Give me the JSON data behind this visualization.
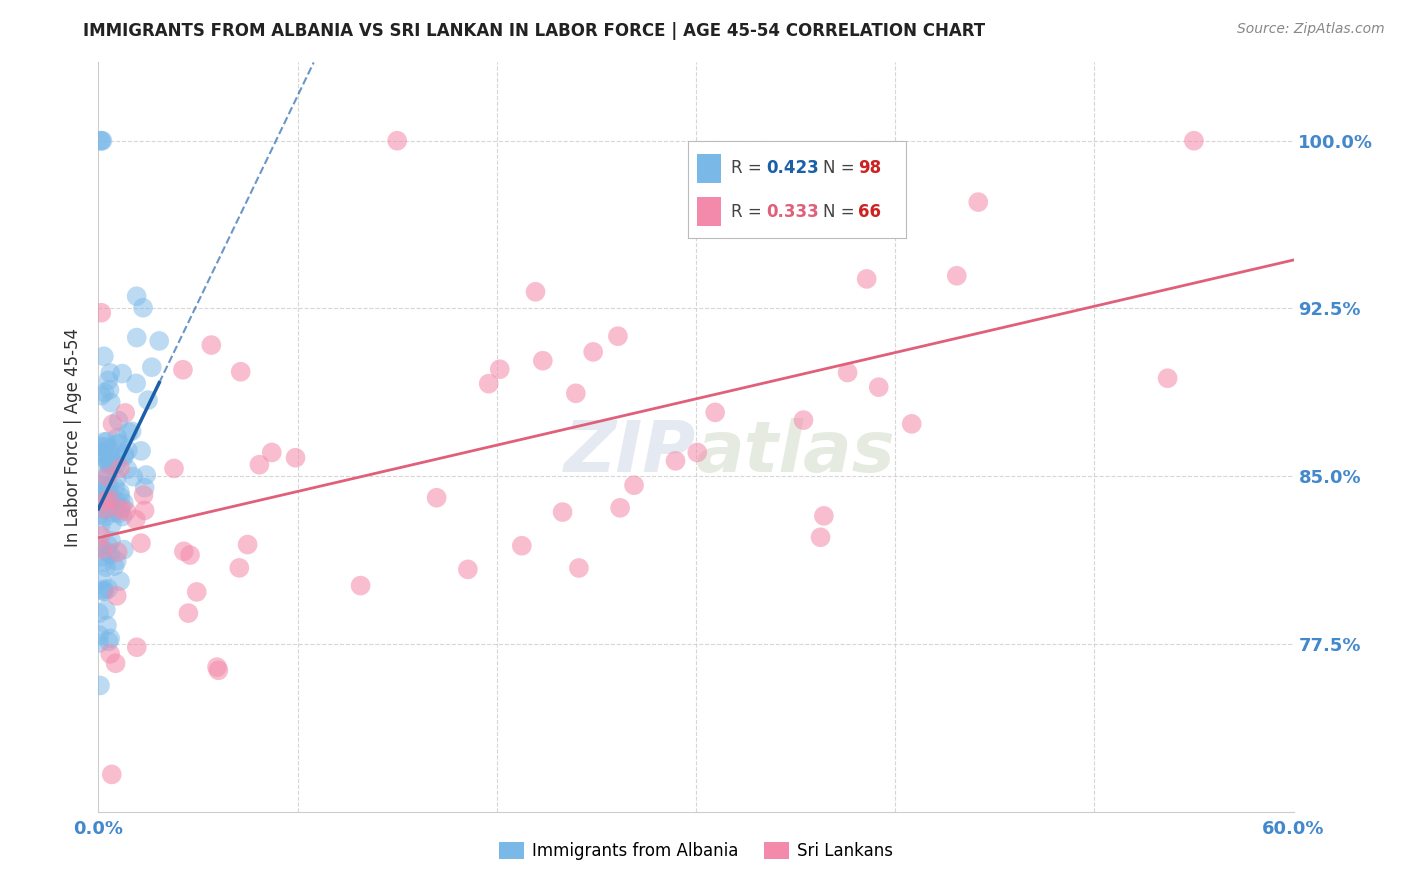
{
  "title": "IMMIGRANTS FROM ALBANIA VS SRI LANKAN IN LABOR FORCE | AGE 45-54 CORRELATION CHART",
  "source": "Source: ZipAtlas.com",
  "ylabel": "In Labor Force | Age 45-54",
  "ytick_labels": [
    "100.0%",
    "92.5%",
    "85.0%",
    "77.5%"
  ],
  "ytick_values": [
    1.0,
    0.925,
    0.85,
    0.775
  ],
  "xmin": 0.0,
  "xmax": 0.6,
  "ymin": 0.7,
  "ymax": 1.035,
  "albania_color": "#7ab8e8",
  "srilanka_color": "#f48aab",
  "albania_line_color": "#1a5fa8",
  "srilanka_line_color": "#e0607a",
  "background_color": "#ffffff",
  "grid_color": "#cccccc",
  "ytick_color": "#4488cc",
  "xtick_color": "#4488cc",
  "albania_N": 98,
  "srilanka_N": 66,
  "albania_R": 0.423,
  "srilanka_R": 0.333
}
